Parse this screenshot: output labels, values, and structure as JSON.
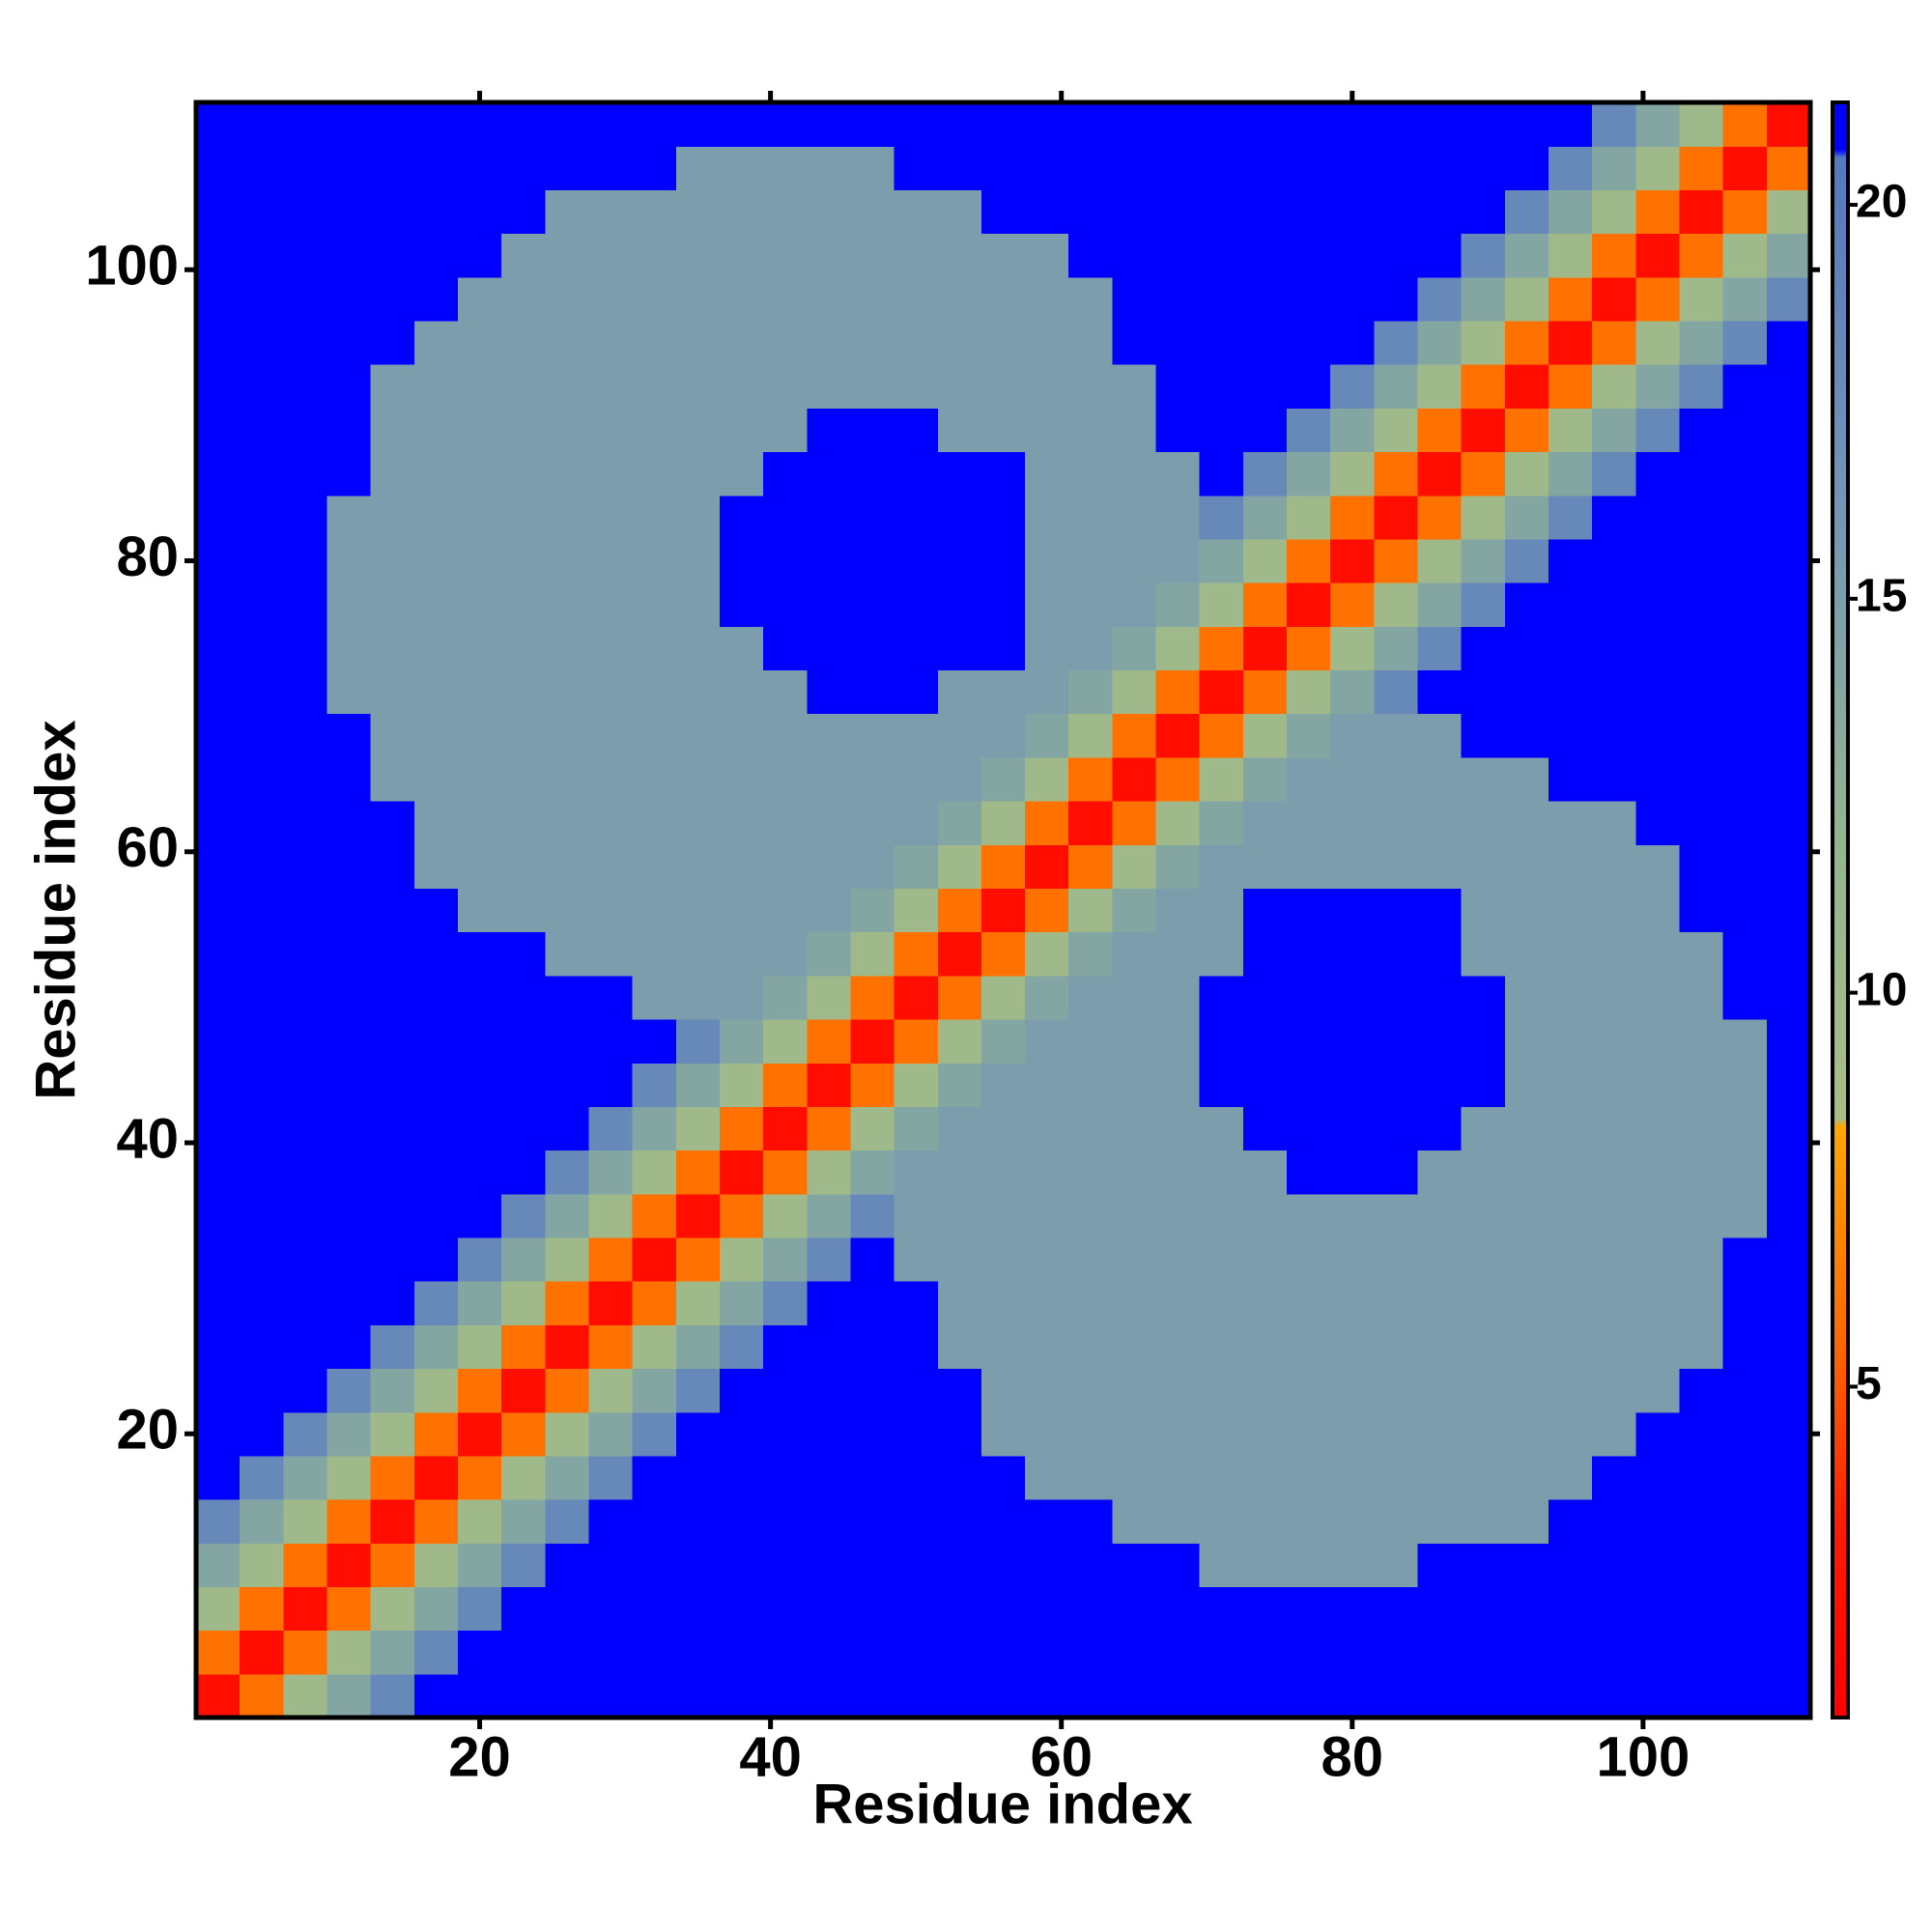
{
  "chart_data": {
    "type": "heatmap",
    "xlabel": "Residue index",
    "ylabel": "Residue index",
    "x": [
      2,
      5,
      8,
      11,
      14,
      17,
      20,
      23,
      26,
      29,
      32,
      35,
      38,
      41,
      44,
      47,
      50,
      53,
      56,
      59,
      62,
      65,
      68,
      71,
      74,
      77,
      80,
      83,
      86,
      89,
      92,
      95,
      98,
      101,
      104,
      107,
      110
    ],
    "y": [
      2,
      5,
      8,
      11,
      14,
      17,
      20,
      23,
      26,
      29,
      32,
      35,
      38,
      41,
      44,
      47,
      50,
      53,
      56,
      59,
      62,
      65,
      68,
      71,
      74,
      77,
      80,
      83,
      86,
      89,
      92,
      95,
      98,
      101,
      104,
      107,
      110
    ],
    "xlim": [
      0.5,
      111.5
    ],
    "ylim": [
      0.5,
      111.5
    ],
    "xticks": [
      20,
      40,
      60,
      80,
      100
    ],
    "yticks": [
      20,
      40,
      60,
      80,
      100
    ],
    "clim": [
      0.8,
      21.3
    ],
    "cticks": [
      5,
      10,
      15,
      20
    ],
    "colorscale": [
      [
        0.8,
        "#ff0000"
      ],
      [
        3.2,
        "#ff1a00"
      ],
      [
        5.5,
        "#ff6600"
      ],
      [
        8.3,
        "#ffa500"
      ],
      [
        8.4,
        "#a8bd86"
      ],
      [
        12,
        "#93b48f"
      ],
      [
        16,
        "#7497b5"
      ],
      [
        20.6,
        "#5577c0"
      ],
      [
        20.7,
        "#0000ff"
      ],
      [
        21.3,
        "#0000ff"
      ]
    ],
    "z": [
      [
        2,
        6,
        10,
        14,
        18,
        22,
        22,
        22,
        22,
        22,
        22,
        22,
        22,
        22,
        22,
        22,
        22,
        22,
        22,
        22,
        22,
        22,
        22,
        22,
        22,
        22,
        22,
        22,
        22,
        22,
        22,
        22,
        22,
        22,
        22,
        22,
        22
      ],
      [
        6,
        2,
        6,
        10,
        14,
        18,
        22,
        22,
        22,
        22,
        22,
        22,
        22,
        22,
        22,
        22,
        22,
        22,
        22,
        22,
        22,
        22,
        22,
        22,
        22,
        22,
        22,
        22,
        22,
        22,
        22,
        22,
        22,
        22,
        22,
        22,
        22
      ],
      [
        10,
        6,
        2,
        6,
        10,
        14,
        18,
        22,
        22,
        22,
        22,
        22,
        22,
        22,
        22,
        22,
        22,
        22,
        22,
        22,
        22,
        22,
        22,
        22,
        22,
        22,
        22,
        22,
        22,
        22,
        22,
        22,
        22,
        22,
        22,
        22,
        22
      ],
      [
        14,
        10,
        6,
        2,
        6,
        10,
        14,
        18,
        22,
        22,
        22,
        22,
        22,
        22,
        22,
        22,
        22,
        22,
        22,
        22,
        22,
        22,
        22,
        15,
        15,
        15,
        15,
        15,
        22,
        22,
        22,
        22,
        22,
        22,
        22,
        22,
        22
      ],
      [
        18,
        14,
        10,
        6,
        2,
        6,
        10,
        14,
        18,
        22,
        22,
        22,
        22,
        22,
        22,
        22,
        22,
        22,
        22,
        22,
        22,
        15,
        15,
        15,
        15,
        15,
        15,
        15,
        15,
        15,
        15,
        22,
        22,
        22,
        22,
        22,
        22
      ],
      [
        22,
        18,
        14,
        10,
        6,
        2,
        6,
        10,
        14,
        18,
        22,
        22,
        22,
        22,
        22,
        22,
        22,
        22,
        22,
        15,
        15,
        15,
        15,
        15,
        15,
        15,
        15,
        15,
        15,
        15,
        15,
        15,
        22,
        22,
        22,
        22,
        22
      ],
      [
        22,
        22,
        18,
        14,
        10,
        6,
        2,
        6,
        10,
        14,
        18,
        22,
        22,
        22,
        22,
        22,
        22,
        22,
        15,
        15,
        15,
        15,
        15,
        15,
        15,
        15,
        15,
        15,
        15,
        15,
        15,
        15,
        15,
        22,
        22,
        22,
        22
      ],
      [
        22,
        22,
        22,
        18,
        14,
        10,
        6,
        2,
        6,
        10,
        14,
        18,
        22,
        22,
        22,
        22,
        22,
        22,
        15,
        15,
        15,
        15,
        15,
        15,
        15,
        15,
        15,
        15,
        15,
        15,
        15,
        15,
        15,
        15,
        22,
        22,
        22
      ],
      [
        22,
        22,
        22,
        22,
        18,
        14,
        10,
        6,
        2,
        6,
        10,
        14,
        18,
        22,
        22,
        22,
        22,
        15,
        15,
        15,
        15,
        15,
        15,
        15,
        15,
        15,
        15,
        15,
        15,
        15,
        15,
        15,
        15,
        15,
        15,
        22,
        22
      ],
      [
        22,
        22,
        22,
        22,
        22,
        18,
        14,
        10,
        6,
        2,
        6,
        10,
        14,
        18,
        22,
        22,
        22,
        15,
        15,
        15,
        15,
        15,
        15,
        15,
        15,
        15,
        15,
        15,
        15,
        15,
        15,
        15,
        15,
        15,
        15,
        22,
        22
      ],
      [
        22,
        22,
        22,
        22,
        22,
        22,
        18,
        14,
        10,
        6,
        2,
        6,
        10,
        14,
        18,
        22,
        15,
        15,
        15,
        15,
        15,
        15,
        15,
        15,
        15,
        15,
        15,
        15,
        15,
        15,
        15,
        15,
        15,
        15,
        15,
        22,
        22
      ],
      [
        22,
        22,
        22,
        22,
        22,
        22,
        22,
        18,
        14,
        10,
        6,
        2,
        6,
        10,
        14,
        18,
        15,
        15,
        15,
        15,
        15,
        15,
        15,
        15,
        15,
        15,
        15,
        15,
        15,
        15,
        15,
        15,
        15,
        15,
        15,
        15,
        22
      ],
      [
        22,
        22,
        22,
        22,
        22,
        22,
        22,
        22,
        18,
        14,
        10,
        6,
        2,
        6,
        10,
        14,
        15,
        15,
        15,
        15,
        15,
        15,
        15,
        15,
        15,
        22,
        22,
        22,
        15,
        15,
        15,
        15,
        15,
        15,
        15,
        15,
        22
      ],
      [
        22,
        22,
        22,
        22,
        22,
        22,
        22,
        22,
        22,
        18,
        14,
        10,
        6,
        2,
        6,
        10,
        14,
        15,
        15,
        15,
        15,
        15,
        15,
        15,
        22,
        22,
        22,
        22,
        22,
        15,
        15,
        15,
        15,
        15,
        15,
        15,
        22
      ],
      [
        22,
        22,
        22,
        22,
        22,
        22,
        22,
        22,
        22,
        22,
        18,
        14,
        10,
        6,
        2,
        6,
        10,
        14,
        15,
        15,
        15,
        15,
        15,
        22,
        22,
        22,
        22,
        22,
        22,
        22,
        15,
        15,
        15,
        15,
        15,
        15,
        22
      ],
      [
        22,
        22,
        22,
        22,
        22,
        22,
        22,
        22,
        22,
        22,
        22,
        18,
        14,
        10,
        6,
        2,
        6,
        10,
        14,
        15,
        15,
        15,
        15,
        22,
        22,
        22,
        22,
        22,
        22,
        22,
        15,
        15,
        15,
        15,
        15,
        15,
        22
      ],
      [
        22,
        22,
        22,
        22,
        22,
        22,
        22,
        22,
        22,
        22,
        15,
        15,
        15,
        14,
        10,
        6,
        2,
        6,
        10,
        14,
        15,
        15,
        15,
        22,
        22,
        22,
        22,
        22,
        22,
        22,
        15,
        15,
        15,
        15,
        15,
        22,
        22
      ],
      [
        22,
        22,
        22,
        22,
        22,
        22,
        22,
        22,
        15,
        15,
        15,
        15,
        15,
        15,
        14,
        10,
        6,
        2,
        6,
        10,
        14,
        15,
        15,
        15,
        22,
        22,
        22,
        22,
        22,
        15,
        15,
        15,
        15,
        15,
        15,
        22,
        22
      ],
      [
        22,
        22,
        22,
        22,
        22,
        22,
        15,
        15,
        15,
        15,
        15,
        15,
        15,
        15,
        15,
        14,
        10,
        6,
        2,
        6,
        10,
        14,
        15,
        15,
        22,
        22,
        22,
        22,
        22,
        15,
        15,
        15,
        15,
        15,
        22,
        22,
        22
      ],
      [
        22,
        22,
        22,
        22,
        22,
        15,
        15,
        15,
        15,
        15,
        15,
        15,
        15,
        15,
        15,
        15,
        14,
        10,
        6,
        2,
        6,
        10,
        14,
        15,
        15,
        15,
        15,
        15,
        15,
        15,
        15,
        15,
        15,
        15,
        22,
        22,
        22
      ],
      [
        22,
        22,
        22,
        22,
        22,
        15,
        15,
        15,
        15,
        15,
        15,
        15,
        15,
        15,
        15,
        15,
        15,
        14,
        10,
        6,
        2,
        6,
        10,
        14,
        15,
        15,
        15,
        15,
        15,
        15,
        15,
        15,
        15,
        22,
        22,
        22,
        22
      ],
      [
        22,
        22,
        22,
        22,
        15,
        15,
        15,
        15,
        15,
        15,
        15,
        15,
        15,
        15,
        15,
        15,
        15,
        15,
        14,
        10,
        6,
        2,
        6,
        10,
        14,
        15,
        15,
        15,
        15,
        15,
        15,
        22,
        22,
        22,
        22,
        22,
        22
      ],
      [
        22,
        22,
        22,
        22,
        15,
        15,
        15,
        15,
        15,
        15,
        15,
        15,
        15,
        15,
        15,
        15,
        15,
        15,
        15,
        14,
        10,
        6,
        2,
        6,
        10,
        14,
        15,
        15,
        15,
        22,
        22,
        22,
        22,
        22,
        22,
        22,
        22
      ],
      [
        22,
        22,
        22,
        15,
        15,
        15,
        15,
        15,
        15,
        15,
        15,
        15,
        15,
        15,
        22,
        22,
        22,
        15,
        15,
        15,
        14,
        10,
        6,
        2,
        6,
        10,
        14,
        18,
        22,
        22,
        22,
        22,
        22,
        22,
        22,
        22,
        22
      ],
      [
        22,
        22,
        22,
        15,
        15,
        15,
        15,
        15,
        15,
        15,
        15,
        15,
        15,
        22,
        22,
        22,
        22,
        22,
        22,
        15,
        15,
        14,
        10,
        6,
        2,
        6,
        10,
        14,
        18,
        22,
        22,
        22,
        22,
        22,
        22,
        22,
        22
      ],
      [
        22,
        22,
        22,
        15,
        15,
        15,
        15,
        15,
        15,
        15,
        15,
        15,
        22,
        22,
        22,
        22,
        22,
        22,
        22,
        15,
        15,
        15,
        14,
        10,
        6,
        2,
        6,
        10,
        14,
        18,
        22,
        22,
        22,
        22,
        22,
        22,
        22
      ],
      [
        22,
        22,
        22,
        15,
        15,
        15,
        15,
        15,
        15,
        15,
        15,
        15,
        22,
        22,
        22,
        22,
        22,
        22,
        22,
        15,
        15,
        15,
        15,
        14,
        10,
        6,
        2,
        6,
        10,
        14,
        18,
        22,
        22,
        22,
        22,
        22,
        22
      ],
      [
        22,
        22,
        22,
        15,
        15,
        15,
        15,
        15,
        15,
        15,
        15,
        15,
        22,
        22,
        22,
        22,
        22,
        22,
        22,
        15,
        15,
        15,
        15,
        18,
        14,
        10,
        6,
        2,
        6,
        10,
        14,
        18,
        22,
        22,
        22,
        22,
        22
      ],
      [
        22,
        22,
        22,
        22,
        15,
        15,
        15,
        15,
        15,
        15,
        15,
        15,
        15,
        22,
        22,
        22,
        22,
        22,
        22,
        15,
        15,
        15,
        15,
        22,
        18,
        14,
        10,
        6,
        2,
        6,
        10,
        14,
        18,
        22,
        22,
        22,
        22
      ],
      [
        22,
        22,
        22,
        22,
        15,
        15,
        15,
        15,
        15,
        15,
        15,
        15,
        15,
        15,
        22,
        22,
        22,
        15,
        15,
        15,
        15,
        15,
        22,
        22,
        22,
        18,
        14,
        10,
        6,
        2,
        6,
        10,
        14,
        18,
        22,
        22,
        22
      ],
      [
        22,
        22,
        22,
        22,
        15,
        15,
        15,
        15,
        15,
        15,
        15,
        15,
        15,
        15,
        15,
        15,
        15,
        15,
        15,
        15,
        15,
        15,
        22,
        22,
        22,
        22,
        18,
        14,
        10,
        6,
        2,
        6,
        10,
        14,
        18,
        22,
        22
      ],
      [
        22,
        22,
        22,
        22,
        22,
        15,
        15,
        15,
        15,
        15,
        15,
        15,
        15,
        15,
        15,
        15,
        15,
        15,
        15,
        15,
        15,
        22,
        22,
        22,
        22,
        22,
        22,
        18,
        14,
        10,
        6,
        2,
        6,
        10,
        14,
        18,
        22
      ],
      [
        22,
        22,
        22,
        22,
        22,
        22,
        15,
        15,
        15,
        15,
        15,
        15,
        15,
        15,
        15,
        15,
        15,
        15,
        15,
        15,
        15,
        22,
        22,
        22,
        22,
        22,
        22,
        22,
        18,
        14,
        10,
        6,
        2,
        6,
        10,
        14,
        18
      ],
      [
        22,
        22,
        22,
        22,
        22,
        22,
        22,
        15,
        15,
        15,
        15,
        15,
        15,
        15,
        15,
        15,
        15,
        15,
        15,
        15,
        22,
        22,
        22,
        22,
        22,
        22,
        22,
        22,
        22,
        18,
        14,
        10,
        6,
        2,
        6,
        10,
        14
      ],
      [
        22,
        22,
        22,
        22,
        22,
        22,
        22,
        22,
        15,
        15,
        15,
        15,
        15,
        15,
        15,
        15,
        15,
        15,
        22,
        22,
        22,
        22,
        22,
        22,
        22,
        22,
        22,
        22,
        22,
        22,
        18,
        14,
        10,
        6,
        2,
        6,
        10
      ],
      [
        22,
        22,
        22,
        22,
        22,
        22,
        22,
        22,
        22,
        22,
        22,
        15,
        15,
        15,
        15,
        15,
        22,
        22,
        22,
        22,
        22,
        22,
        22,
        22,
        22,
        22,
        22,
        22,
        22,
        22,
        22,
        18,
        14,
        10,
        6,
        2,
        6
      ],
      [
        22,
        22,
        22,
        22,
        22,
        22,
        22,
        22,
        22,
        22,
        22,
        22,
        22,
        22,
        22,
        22,
        22,
        22,
        22,
        22,
        22,
        22,
        22,
        22,
        22,
        22,
        22,
        22,
        22,
        22,
        22,
        22,
        18,
        14,
        10,
        6,
        2
      ]
    ]
  }
}
